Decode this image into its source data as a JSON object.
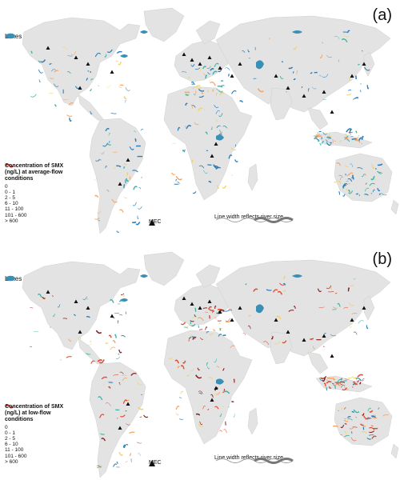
{
  "panels": [
    {
      "label": "(a)",
      "legend_title": "Concentration of SMX (ng/L) at average-flow conditions",
      "legend_title_lines": [
        "Concentration of SMX",
        "(ng/L) at average-flow",
        "conditions"
      ]
    },
    {
      "label": "(b)",
      "legend_title": "Concentration of SMX (ng/L) at low-flow conditions",
      "legend_title_lines": [
        "Concentration of SMX",
        "(ng/L) at low-flow",
        "conditions"
      ]
    }
  ],
  "lakes_label": "Lakes",
  "mec_label": "MEC",
  "river_width_label": "Line width reflects river size",
  "concentration_classes": [
    {
      "label": "0",
      "color": "#bdbdbd"
    },
    {
      "label": "0 - 1",
      "color": "#2c7fb8"
    },
    {
      "label": "2 - 5",
      "color": "#41b6a6"
    },
    {
      "label": "6 - 10",
      "color": "#f2d36b"
    },
    {
      "label": "11 - 100",
      "color": "#f4a261"
    },
    {
      "label": "101 - 600",
      "color": "#e2492f"
    },
    {
      "label": "> 600",
      "color": "#8b1a1a"
    }
  ],
  "colors": {
    "land": "#e3e3e3",
    "lakes": "#3a8fb7",
    "mec_marker": "#111111"
  }
}
